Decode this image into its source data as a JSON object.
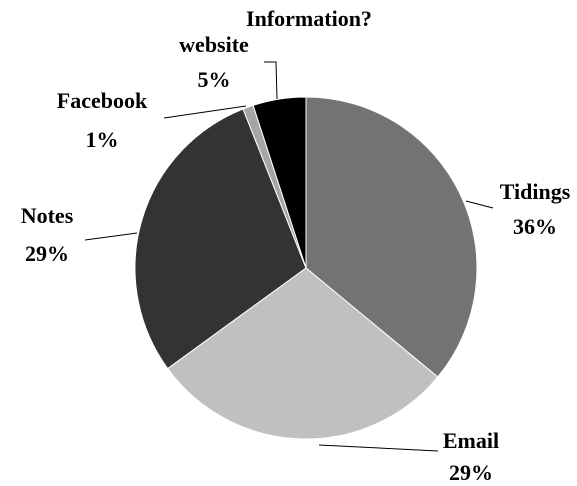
{
  "chart_data": {
    "type": "pie",
    "categories": [
      "Tidings",
      "Email",
      "Notes",
      "Facebook",
      "Information? website"
    ],
    "values": [
      36,
      29,
      29,
      1,
      5
    ],
    "value_labels": [
      "36%",
      "29%",
      "29%",
      "1%",
      "5%"
    ],
    "colors": [
      "#737373",
      "#c0c0c0",
      "#333333",
      "#a5a5a5",
      "#000000"
    ],
    "start": "top, clockwise",
    "legend": "none"
  }
}
